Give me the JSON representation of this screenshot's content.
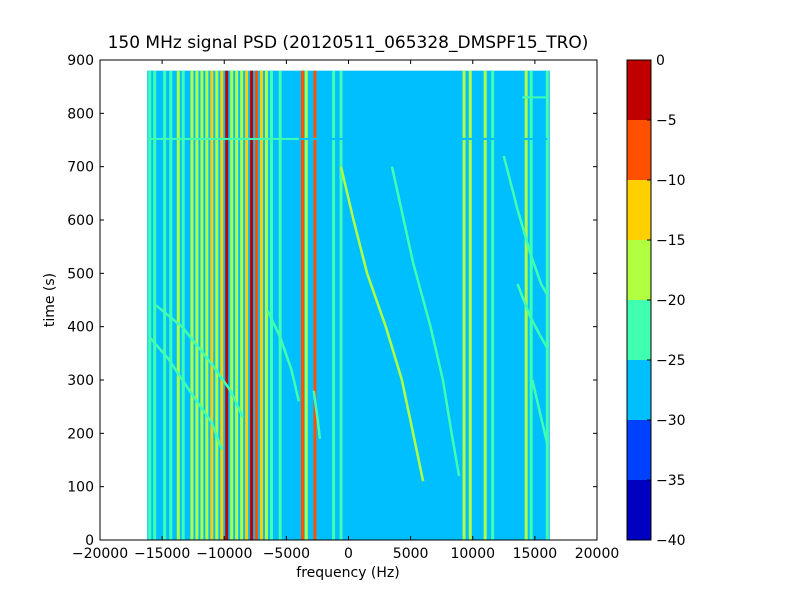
{
  "chart_data": {
    "type": "heatmap",
    "title": "150 MHz signal PSD (20120511_065328_DMSPF15_TRO)",
    "xlabel": "frequency (Hz)",
    "ylabel": "time (s)",
    "xlim": [
      -20000,
      20000
    ],
    "ylim": [
      0,
      900
    ],
    "x_ticks": [
      -20000,
      -15000,
      -10000,
      -5000,
      0,
      5000,
      10000,
      15000,
      20000
    ],
    "y_ticks": [
      0,
      100,
      200,
      300,
      400,
      500,
      600,
      700,
      800,
      900
    ],
    "data_extent": {
      "x": [
        -16200,
        16200
      ],
      "y": [
        0,
        880
      ]
    },
    "background_level": -27,
    "colorbar": {
      "levels": [
        -40,
        -35,
        -30,
        -25,
        -20,
        -15,
        -10,
        -5,
        0
      ],
      "tick_labels": [
        "0",
        "−5",
        "−10",
        "−15",
        "−20",
        "−25",
        "−30",
        "−35",
        "−40"
      ],
      "colors": [
        "#0000c0",
        "#0040ff",
        "#00bfff",
        "#40ffb0",
        "#b0ff40",
        "#ffd000",
        "#ff5000",
        "#c00000"
      ]
    },
    "vertical_lines": [
      {
        "f": -16000,
        "level": -22
      },
      {
        "f": -15600,
        "level": -22
      },
      {
        "f": -14800,
        "level": -22
      },
      {
        "f": -14300,
        "level": -22
      },
      {
        "f": -13700,
        "level": -20
      },
      {
        "f": -13300,
        "level": -22
      },
      {
        "f": -12600,
        "level": -18
      },
      {
        "f": -12200,
        "level": -20
      },
      {
        "f": -11800,
        "level": -16
      },
      {
        "f": -11400,
        "level": -20
      },
      {
        "f": -11000,
        "level": -14
      },
      {
        "f": -10600,
        "level": -18
      },
      {
        "f": -10200,
        "level": -14
      },
      {
        "f": -9800,
        "level": -2
      },
      {
        "f": -9400,
        "level": -16
      },
      {
        "f": -9000,
        "level": -20
      },
      {
        "f": -8600,
        "level": -18
      },
      {
        "f": -8200,
        "level": -14
      },
      {
        "f": -7800,
        "level": -4
      },
      {
        "f": -7400,
        "level": -8
      },
      {
        "f": -7000,
        "level": -14
      },
      {
        "f": -6600,
        "level": -18
      },
      {
        "f": -6200,
        "level": -22
      },
      {
        "f": -5500,
        "level": -22
      },
      {
        "f": -3700,
        "level": -6
      },
      {
        "f": -3400,
        "level": -16
      },
      {
        "f": -2700,
        "level": -10
      },
      {
        "f": -1200,
        "level": -22
      },
      {
        "f": -600,
        "level": -24
      },
      {
        "f": 9300,
        "level": -20
      },
      {
        "f": 9800,
        "level": -18
      },
      {
        "f": 11000,
        "level": -18
      },
      {
        "f": 11600,
        "level": -22
      },
      {
        "f": 14300,
        "level": -16
      },
      {
        "f": 14700,
        "level": -22
      },
      {
        "f": 16000,
        "level": -24
      }
    ],
    "drift_curves": [
      {
        "name": "c1",
        "level": -16,
        "points": [
          [
            -600,
            700
          ],
          [
            400,
            600
          ],
          [
            1500,
            500
          ],
          [
            3000,
            400
          ],
          [
            4300,
            300
          ],
          [
            5200,
            200
          ],
          [
            6000,
            110
          ]
        ]
      },
      {
        "name": "c2",
        "level": -22,
        "points": [
          [
            3500,
            700
          ],
          [
            5200,
            520
          ],
          [
            6600,
            400
          ],
          [
            7600,
            300
          ],
          [
            8300,
            200
          ],
          [
            8900,
            120
          ]
        ]
      },
      {
        "name": "c3",
        "level": -24,
        "points": [
          [
            -15500,
            440
          ],
          [
            -13400,
            400
          ],
          [
            -11000,
            330
          ],
          [
            -9500,
            280
          ],
          [
            -8500,
            230
          ]
        ]
      },
      {
        "name": "c4",
        "level": -22,
        "points": [
          [
            -16000,
            380
          ],
          [
            -14500,
            340
          ],
          [
            -12800,
            280
          ],
          [
            -11000,
            220
          ],
          [
            -10200,
            170
          ]
        ]
      },
      {
        "name": "c5",
        "level": -24,
        "points": [
          [
            -6500,
            430
          ],
          [
            -5500,
            380
          ],
          [
            -4600,
            320
          ],
          [
            -4000,
            260
          ]
        ]
      },
      {
        "name": "c6",
        "level": -24,
        "points": [
          [
            -2800,
            280
          ],
          [
            -2500,
            230
          ],
          [
            -2300,
            190
          ]
        ]
      },
      {
        "name": "c7",
        "level": -22,
        "points": [
          [
            12500,
            720
          ],
          [
            13600,
            620
          ],
          [
            14600,
            540
          ],
          [
            15500,
            480
          ],
          [
            16000,
            460
          ]
        ]
      },
      {
        "name": "c8",
        "level": -24,
        "points": [
          [
            13600,
            480
          ],
          [
            14600,
            420
          ],
          [
            15500,
            380
          ],
          [
            16000,
            360
          ]
        ]
      },
      {
        "name": "c9",
        "level": -24,
        "points": [
          [
            14800,
            300
          ],
          [
            15400,
            240
          ],
          [
            16000,
            180
          ]
        ]
      }
    ],
    "horizontal_streaks": [
      {
        "t": 752,
        "f": [
          -16000,
          -4000
        ],
        "level": -22
      },
      {
        "t": 752,
        "f": [
          -4000,
          16000
        ],
        "level": -26
      },
      {
        "t": 830,
        "f": [
          14000,
          16000
        ],
        "level": -22
      }
    ]
  }
}
